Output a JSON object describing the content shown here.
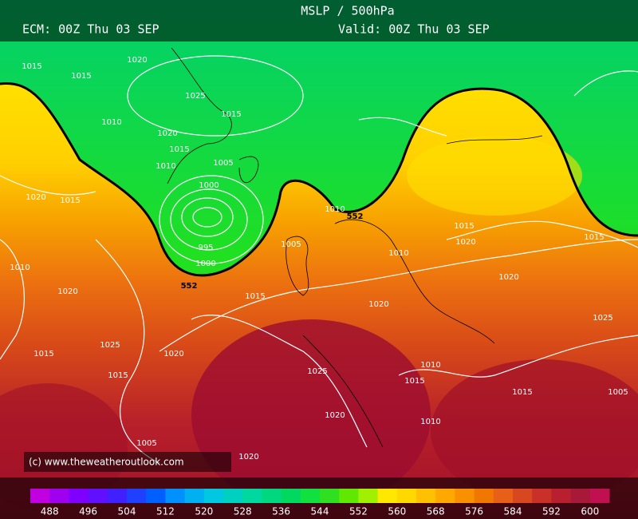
{
  "header": {
    "title": "MSLP / 500hPa",
    "model_run": "ECM: 00Z Thu 03 SEP",
    "valid": "Valid: 00Z Thu 03 SEP"
  },
  "copyright": "(c) www.theweatheroutlook.com",
  "colorbar": {
    "labels": [
      "488",
      "496",
      "504",
      "512",
      "520",
      "528",
      "536",
      "544",
      "552",
      "560",
      "568",
      "576",
      "584",
      "592",
      "600"
    ]
  },
  "contour_labels": [
    "552",
    "552"
  ],
  "isobar_labels": [
    "1020",
    "1015",
    "1015",
    "1025",
    "1015",
    "1010",
    "1020",
    "1015",
    "1010",
    "1005",
    "1000",
    "995",
    "1000",
    "1005",
    "1010",
    "1015",
    "1020",
    "1020",
    "1025",
    "1015",
    "1020",
    "1015",
    "1020",
    "1010",
    "1015",
    "1005",
    "1010",
    "1015",
    "1020",
    "1025",
    "1015",
    "1020",
    "1025",
    "1015",
    "1010",
    "1020",
    "1015",
    "1005",
    "1010",
    "1020"
  ]
}
